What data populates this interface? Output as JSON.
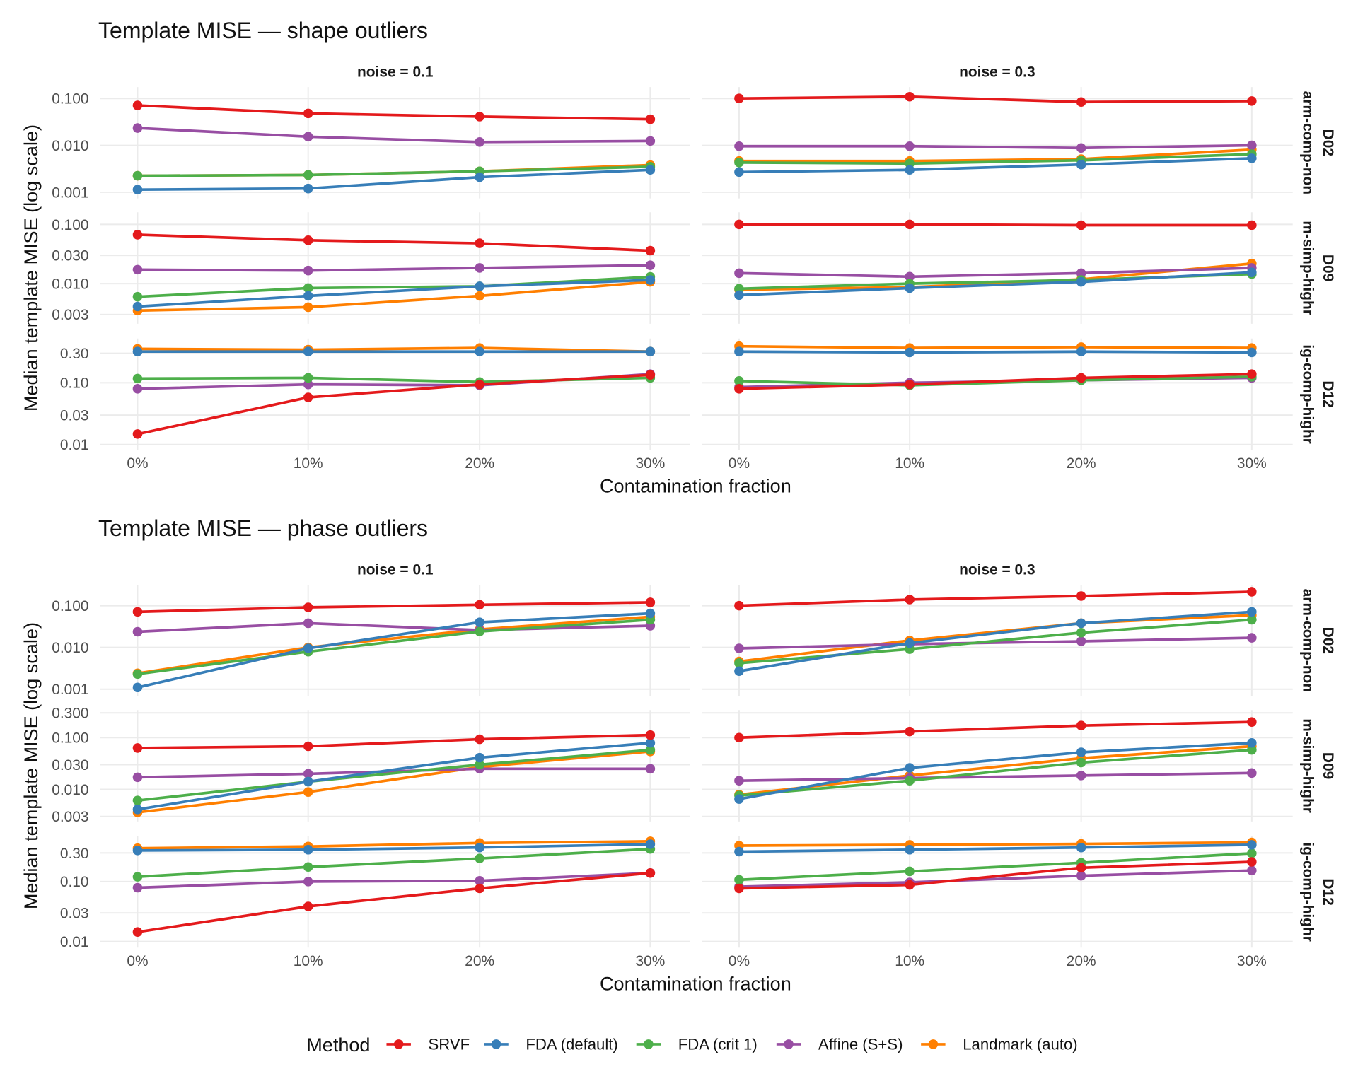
{
  "colors": {
    "SRVF": "#e41a1c",
    "FDA (default)": "#377eb8",
    "FDA (crit 1)": "#4daf4a",
    "Affine (S+S)": "#984ea3",
    "Landmark (auto)": "#ff7f00"
  },
  "legend": {
    "title": "Method",
    "items": [
      "SRVF",
      "FDA (default)",
      "FDA (crit 1)",
      "Affine (S+S)",
      "Landmark (auto)"
    ],
    "placement": "bottom"
  },
  "chart_data": [
    {
      "type": "line",
      "title": "Template MISE — shape outliers",
      "xlabel": "Contamination fraction",
      "ylabel": "Median template MISE (log scale)",
      "yscale": "log",
      "x": [
        "0%",
        "10%",
        "20%",
        "30%"
      ],
      "columns": [
        "noise = 0.1",
        "noise = 0.3"
      ],
      "rows": [
        {
          "id": "D02",
          "desc": "arm-comp-non",
          "y_ticks": [
            "0.001",
            "0.010",
            "0.100"
          ],
          "ylim": [
            0.00074,
            0.175
          ],
          "panels": [
            {
              "SRVF": [
                0.071,
                0.048,
                0.041,
                0.036
              ],
              "FDA (default)": [
                0.00114,
                0.0012,
                0.0021,
                0.003
              ],
              "FDA (crit 1)": [
                0.00225,
                0.00234,
                0.0028,
                0.0035
              ],
              "Affine (S+S)": [
                0.0234,
                0.0153,
                0.0118,
                0.0124
              ],
              "Landmark (auto)": [
                0.00225,
                0.00234,
                0.0028,
                0.0038
              ]
            },
            {
              "SRVF": [
                0.1,
                0.109,
                0.084,
                0.088
              ],
              "FDA (default)": [
                0.0027,
                0.003,
                0.0039,
                0.0053
              ],
              "FDA (crit 1)": [
                0.0043,
                0.0041,
                0.0048,
                0.0065
              ],
              "Affine (S+S)": [
                0.0096,
                0.0096,
                0.0088,
                0.01
              ],
              "Landmark (auto)": [
                0.00464,
                0.00464,
                0.0051,
                0.0081
              ]
            }
          ]
        },
        {
          "id": "D09",
          "desc": "m-simp-highr",
          "y_ticks": [
            "0.003",
            "0.010",
            "0.030",
            "0.100"
          ],
          "ylim": [
            0.0021,
            0.16
          ],
          "panels": [
            {
              "SRVF": [
                0.067,
                0.054,
                0.048,
                0.036
              ],
              "FDA (default)": [
                0.0041,
                0.0062,
                0.009,
                0.0115
              ],
              "FDA (crit 1)": [
                0.006,
                0.0084,
                0.009,
                0.013
              ],
              "Affine (S+S)": [
                0.0172,
                0.0166,
                0.0184,
                0.0204
              ],
              "Landmark (auto)": [
                0.0035,
                0.004,
                0.0062,
                0.0107
              ]
            },
            {
              "SRVF": [
                0.1,
                0.1,
                0.097,
                0.097
              ],
              "FDA (default)": [
                0.0064,
                0.0084,
                0.0107,
                0.0155
              ],
              "FDA (crit 1)": [
                0.0082,
                0.01,
                0.0115,
                0.0145
              ],
              "Affine (S+S)": [
                0.015,
                0.0131,
                0.015,
                0.0184
              ],
              "Landmark (auto)": [
                0.0079,
                0.0087,
                0.0118,
                0.0218
              ]
            }
          ]
        },
        {
          "id": "D12",
          "desc": "ig-comp-highr",
          "y_ticks": [
            "0.01",
            "0.03",
            "0.10",
            "0.30"
          ],
          "ylim": [
            0.0082,
            0.52
          ],
          "panels": [
            {
              "SRVF": [
                0.0148,
                0.058,
                0.094,
                0.134
              ],
              "FDA (default)": [
                0.32,
                0.32,
                0.32,
                0.32
              ],
              "FDA (crit 1)": [
                0.117,
                0.12,
                0.103,
                0.12
              ],
              "Affine (S+S)": [
                0.08,
                0.094,
                0.091,
                0.138
              ],
              "Landmark (auto)": [
                0.354,
                0.343,
                0.366,
                0.32
              ]
            },
            {
              "SRVF": [
                0.08,
                0.094,
                0.12,
                0.138
              ],
              "FDA (default)": [
                0.32,
                0.31,
                0.32,
                0.31
              ],
              "FDA (crit 1)": [
                0.107,
                0.091,
                0.11,
                0.125
              ],
              "Affine (S+S)": [
                0.085,
                0.1,
                0.11,
                0.12
              ],
              "Landmark (auto)": [
                0.39,
                0.366,
                0.378,
                0.366
              ]
            }
          ]
        }
      ]
    },
    {
      "type": "line",
      "title": "Template MISE — phase outliers",
      "xlabel": "Contamination fraction",
      "ylabel": "Median template MISE (log scale)",
      "yscale": "log",
      "x": [
        "0%",
        "10%",
        "20%",
        "30%"
      ],
      "columns": [
        "noise = 0.1",
        "noise = 0.3"
      ],
      "rows": [
        {
          "id": "D02",
          "desc": "arm-comp-non",
          "y_ticks": [
            "0.001",
            "0.010",
            "0.100"
          ],
          "ylim": [
            0.00068,
            0.316
          ],
          "panels": [
            {
              "SRVF": [
                0.071,
                0.091,
                0.105,
                0.12
              ],
              "FDA (default)": [
                0.0011,
                0.0095,
                0.04,
                0.065
              ],
              "FDA (crit 1)": [
                0.0023,
                0.0079,
                0.024,
                0.046
              ],
              "Affine (S+S)": [
                0.0237,
                0.038,
                0.026,
                0.033
              ],
              "Landmark (auto)": [
                0.0024,
                0.01,
                0.027,
                0.054
              ]
            },
            {
              "SRVF": [
                0.1,
                0.14,
                0.17,
                0.215
              ],
              "FDA (default)": [
                0.0027,
                0.0127,
                0.038,
                0.071
              ],
              "FDA (crit 1)": [
                0.0042,
                0.0091,
                0.0226,
                0.046
              ],
              "Affine (S+S)": [
                0.0095,
                0.012,
                0.014,
                0.017
              ],
              "Landmark (auto)": [
                0.0046,
                0.0147,
                0.038,
                0.059
              ]
            }
          ]
        },
        {
          "id": "D09",
          "desc": "m-simp-highr",
          "y_ticks": [
            "0.003",
            "0.010",
            "0.030",
            "0.100",
            "0.300"
          ],
          "ylim": [
            0.0024,
            0.34
          ],
          "panels": [
            {
              "SRVF": [
                0.063,
                0.068,
                0.093,
                0.112
              ],
              "FDA (default)": [
                0.0041,
                0.0141,
                0.041,
                0.079
              ],
              "FDA (crit 1)": [
                0.0061,
                0.0141,
                0.03,
                0.058
              ],
              "Affine (S+S)": [
                0.0171,
                0.02,
                0.025,
                0.025
              ],
              "Landmark (auto)": [
                0.0036,
                0.0089,
                0.027,
                0.054
              ]
            },
            {
              "SRVF": [
                0.1,
                0.131,
                0.171,
                0.2
              ],
              "FDA (default)": [
                0.0065,
                0.026,
                0.052,
                0.079
              ],
              "FDA (crit 1)": [
                0.0076,
                0.0147,
                0.033,
                0.058
              ],
              "Affine (S+S)": [
                0.0147,
                0.0165,
                0.0185,
                0.0207
              ],
              "Landmark (auto)": [
                0.0079,
                0.0185,
                0.04,
                0.068
              ]
            }
          ]
        },
        {
          "id": "D12",
          "desc": "ig-comp-highr",
          "y_ticks": [
            "0.01",
            "0.03",
            "0.10",
            "0.30"
          ],
          "ylim": [
            0.0079,
            0.57
          ],
          "panels": [
            {
              "SRVF": [
                0.0144,
                0.0385,
                0.077,
                0.139
              ],
              "FDA (default)": [
                0.33,
                0.34,
                0.37,
                0.42
              ],
              "FDA (crit 1)": [
                0.12,
                0.175,
                0.243,
                0.35
              ],
              "Affine (S+S)": [
                0.079,
                0.1,
                0.103,
                0.139
              ],
              "Landmark (auto)": [
                0.36,
                0.385,
                0.44,
                0.47
              ]
            },
            {
              "SRVF": [
                0.077,
                0.088,
                0.17,
                0.213
              ],
              "FDA (default)": [
                0.316,
                0.34,
                0.37,
                0.41
              ],
              "FDA (crit 1)": [
                0.107,
                0.148,
                0.206,
                0.296
              ],
              "Affine (S+S)": [
                0.082,
                0.097,
                0.125,
                0.153
              ],
              "Landmark (auto)": [
                0.398,
                0.41,
                0.425,
                0.45
              ]
            }
          ]
        }
      ]
    }
  ]
}
